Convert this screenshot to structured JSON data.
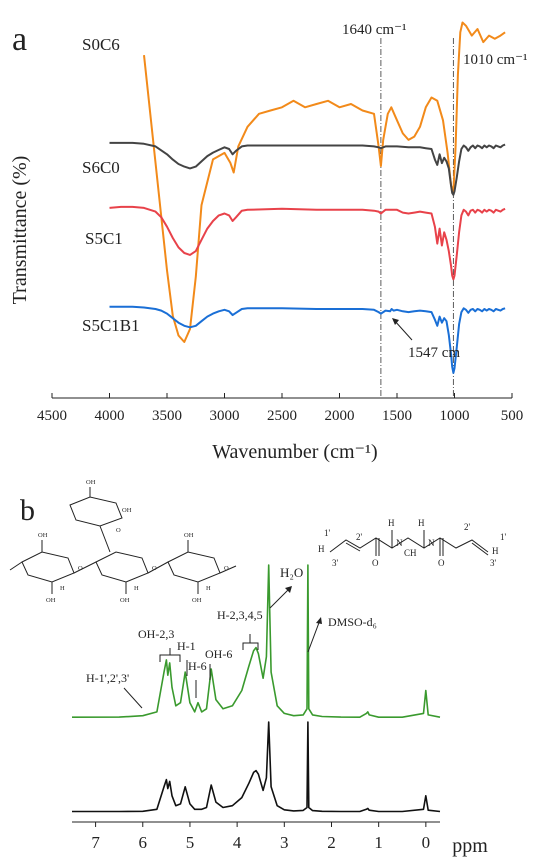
{
  "panel_a": {
    "label": "a",
    "annotations": {
      "peak_1640": "1640 cm⁻¹",
      "peak_1010": "1010 cm⁻¹",
      "peak_1547": "1547 cm"
    },
    "series_labels": [
      "S0C6",
      "S6C0",
      "S5C1",
      "S5C1B1"
    ]
  },
  "panel_b": {
    "label": "b",
    "annotations": {
      "h2o": "H₂O",
      "dmso": "DMSO-d₆",
      "oh23": "OH-2,3",
      "h1": "H-1",
      "h6": "H-6",
      "oh6": "OH-6",
      "h2345": "H-2,3,4,5",
      "h1p": "H-1',2',3'"
    },
    "xunit": "ppm"
  },
  "chart_data": [
    {
      "type": "line",
      "title": "",
      "xlabel": "Wavenumber (cm⁻¹)",
      "ylabel": "Transmittance (%)",
      "xlim": [
        4500,
        500
      ],
      "x_reversed": true,
      "x_ticks": [
        4500,
        4000,
        3500,
        3000,
        2500,
        2000,
        1500,
        1000,
        500
      ],
      "y_ticks": false,
      "grid": false,
      "legend": "inline labels",
      "reference_lines": [
        1640,
        1010
      ],
      "series": [
        {
          "name": "S0C6",
          "color": "#f28a1a",
          "x": [
            3700,
            3600,
            3500,
            3450,
            3400,
            3350,
            3300,
            3250,
            3200,
            3100,
            3000,
            2950,
            2920,
            2880,
            2800,
            2700,
            2600,
            2500,
            2400,
            2300,
            2200,
            2100,
            2000,
            1900,
            1800,
            1700,
            1660,
            1640,
            1620,
            1580,
            1550,
            1500,
            1450,
            1400,
            1350,
            1300,
            1250,
            1200,
            1150,
            1100,
            1060,
            1030,
            1010,
            990,
            970,
            950,
            930,
            900,
            850,
            800,
            750,
            700,
            650,
            600,
            560
          ],
          "y": [
            88,
            55,
            22,
            8,
            2,
            0,
            4,
            20,
            42,
            56,
            58,
            55,
            52,
            60,
            66,
            70,
            71,
            72,
            74,
            72,
            73,
            74,
            72,
            73,
            71,
            70,
            60,
            54,
            62,
            70,
            72,
            68,
            64,
            62,
            63,
            66,
            72,
            75,
            74,
            68,
            58,
            48,
            46,
            60,
            82,
            95,
            98,
            97,
            94,
            96,
            92,
            94,
            93,
            94,
            95
          ]
        },
        {
          "name": "S6C0",
          "color": "#444444",
          "x": [
            4000,
            3900,
            3800,
            3700,
            3600,
            3500,
            3450,
            3400,
            3350,
            3300,
            3250,
            3200,
            3150,
            3100,
            3050,
            3000,
            2960,
            2930,
            2900,
            2850,
            2800,
            2500,
            2200,
            2000,
            1800,
            1700,
            1660,
            1640,
            1620,
            1600,
            1500,
            1400,
            1300,
            1250,
            1200,
            1170,
            1150,
            1130,
            1110,
            1090,
            1070,
            1050,
            1030,
            1020,
            1010,
            1000,
            980,
            960,
            940,
            920,
            900,
            880,
            860,
            840,
            820,
            800,
            780,
            760,
            740,
            720,
            700,
            680,
            660,
            640,
            620,
            600,
            580,
            560
          ],
          "y": [
            99,
            99,
            99,
            98,
            95,
            86,
            80,
            75,
            72,
            70,
            72,
            78,
            84,
            88,
            91,
            94,
            92,
            86,
            90,
            95,
            96,
            96,
            96,
            96,
            96,
            95,
            94,
            93,
            94,
            95,
            95,
            94,
            94,
            93,
            92,
            80,
            74,
            86,
            76,
            82,
            78,
            70,
            50,
            42,
            40,
            44,
            60,
            78,
            92,
            96,
            94,
            90,
            94,
            96,
            93,
            96,
            95,
            93,
            96,
            94,
            96,
            95,
            93,
            96,
            95,
            94,
            96,
            97
          ]
        },
        {
          "name": "S5C1",
          "color": "#e8424a",
          "x": [
            4000,
            3900,
            3800,
            3700,
            3600,
            3550,
            3500,
            3450,
            3400,
            3350,
            3300,
            3250,
            3200,
            3150,
            3100,
            3050,
            3000,
            2960,
            2930,
            2900,
            2850,
            2800,
            2500,
            2200,
            2000,
            1800,
            1700,
            1660,
            1640,
            1620,
            1600,
            1500,
            1450,
            1400,
            1350,
            1300,
            1250,
            1200,
            1170,
            1150,
            1130,
            1110,
            1090,
            1070,
            1050,
            1030,
            1020,
            1010,
            1000,
            980,
            960,
            940,
            920,
            900,
            880,
            860,
            840,
            820,
            800,
            780,
            760,
            740,
            720,
            700,
            680,
            660,
            640,
            620,
            600,
            580,
            560
          ],
          "y": [
            98,
            99,
            99,
            98,
            94,
            88,
            78,
            66,
            56,
            50,
            48,
            52,
            64,
            76,
            84,
            90,
            92,
            90,
            84,
            88,
            95,
            96,
            97,
            96,
            96,
            96,
            95,
            94,
            92,
            94,
            96,
            96,
            93,
            92,
            93,
            94,
            93,
            92,
            78,
            60,
            76,
            58,
            72,
            64,
            52,
            36,
            26,
            22,
            26,
            48,
            72,
            90,
            96,
            94,
            90,
            95,
            96,
            93,
            96,
            95,
            93,
            96,
            94,
            96,
            95,
            93,
            96,
            95,
            94,
            96,
            97
          ]
        },
        {
          "name": "S5C1B1",
          "color": "#1a6fd6",
          "x": [
            4000,
            3900,
            3800,
            3700,
            3600,
            3550,
            3500,
            3450,
            3400,
            3350,
            3300,
            3250,
            3200,
            3150,
            3100,
            3050,
            3000,
            2960,
            2930,
            2900,
            2850,
            2800,
            2500,
            2200,
            2000,
            1800,
            1700,
            1660,
            1640,
            1620,
            1600,
            1560,
            1547,
            1530,
            1500,
            1450,
            1400,
            1350,
            1300,
            1250,
            1200,
            1170,
            1150,
            1130,
            1110,
            1090,
            1070,
            1050,
            1030,
            1020,
            1010,
            1000,
            980,
            960,
            940,
            920,
            900,
            880,
            860,
            840,
            820,
            800,
            780,
            760,
            740,
            720,
            700,
            680,
            660,
            640,
            620,
            600,
            580,
            560
          ],
          "y": [
            99,
            99,
            99,
            98,
            96,
            94,
            90,
            84,
            78,
            74,
            72,
            74,
            80,
            86,
            90,
            93,
            95,
            93,
            88,
            91,
            96,
            97,
            97,
            96,
            96,
            96,
            95,
            92,
            90,
            92,
            94,
            93,
            96,
            94,
            95,
            93,
            92,
            93,
            94,
            93,
            92,
            82,
            74,
            86,
            78,
            84,
            80,
            62,
            36,
            20,
            12,
            18,
            46,
            76,
            92,
            97,
            95,
            91,
            95,
            96,
            93,
            96,
            95,
            93,
            96,
            94,
            96,
            95,
            93,
            96,
            95,
            94,
            96,
            97
          ]
        }
      ]
    },
    {
      "type": "line",
      "title": "",
      "xlabel": "ppm",
      "ylabel": "",
      "xlim": [
        7.5,
        -0.3
      ],
      "x_reversed": true,
      "x_ticks": [
        7,
        6,
        5,
        4,
        3,
        2,
        1,
        0
      ],
      "grid": false,
      "peaks_ppm": [
        5.5,
        5.43,
        5.1,
        4.83,
        4.55,
        3.6,
        3.33,
        2.5,
        1.23,
        0.0
      ],
      "series": [
        {
          "name": "",
          "color": "#3a9a2e",
          "x": [
            7.5,
            6.5,
            6.0,
            5.7,
            5.55,
            5.5,
            5.47,
            5.43,
            5.38,
            5.3,
            5.2,
            5.1,
            5.0,
            4.9,
            4.83,
            4.75,
            4.65,
            4.55,
            4.45,
            4.3,
            4.1,
            3.9,
            3.75,
            3.65,
            3.6,
            3.55,
            3.45,
            3.38,
            3.33,
            3.28,
            3.15,
            3.0,
            2.8,
            2.6,
            2.52,
            2.5,
            2.48,
            2.4,
            2.2,
            1.8,
            1.4,
            1.26,
            1.23,
            1.2,
            1.0,
            0.5,
            0.05,
            0.0,
            -0.05,
            -0.3
          ],
          "y": [
            0.5,
            0.6,
            1.5,
            4,
            30,
            38,
            28,
            36,
            20,
            8,
            10,
            30,
            10,
            4,
            10,
            4,
            6,
            32,
            12,
            6,
            8,
            18,
            34,
            44,
            46,
            42,
            26,
            40,
            100,
            30,
            8,
            3,
            1.5,
            2,
            6,
            100,
            6,
            2,
            1,
            0.6,
            0.5,
            3,
            4,
            2,
            0.5,
            0.5,
            3,
            18,
            2,
            0.5
          ]
        },
        {
          "name": "",
          "color": "#111111",
          "x": [
            7.5,
            6.5,
            6.0,
            5.7,
            5.55,
            5.5,
            5.47,
            5.43,
            5.38,
            5.3,
            5.2,
            5.1,
            5.0,
            4.9,
            4.83,
            4.75,
            4.65,
            4.55,
            4.45,
            4.3,
            4.1,
            3.9,
            3.75,
            3.65,
            3.6,
            3.55,
            3.45,
            3.38,
            3.33,
            3.28,
            3.15,
            3.0,
            2.8,
            2.6,
            2.52,
            2.5,
            2.48,
            2.4,
            2.2,
            1.8,
            1.4,
            1.26,
            1.23,
            1.2,
            1.0,
            0.5,
            0.05,
            0.0,
            -0.05,
            -0.3
          ],
          "y": [
            0.5,
            0.5,
            0.8,
            3,
            28,
            36,
            26,
            34,
            18,
            7,
            9,
            28,
            9,
            3,
            3,
            3,
            5,
            30,
            11,
            5,
            7,
            16,
            32,
            44,
            46,
            42,
            24,
            38,
            100,
            28,
            7,
            2.5,
            1.2,
            1.8,
            5,
            100,
            5,
            1.5,
            0.8,
            0.5,
            0.5,
            3,
            4,
            2,
            0.5,
            0.5,
            3,
            18,
            2,
            0.5
          ]
        }
      ]
    }
  ]
}
